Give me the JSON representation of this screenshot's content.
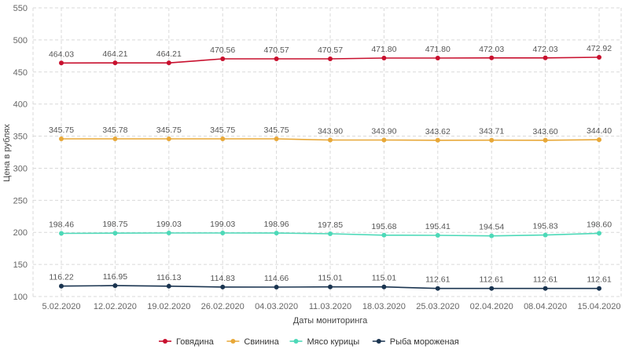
{
  "chart_data": {
    "type": "line",
    "xlabel": "Даты мониторинга",
    "ylabel": "Цена в рублях",
    "ylim": [
      100,
      550
    ],
    "yticks": [
      "100",
      "150",
      "200",
      "250",
      "300",
      "350",
      "400",
      "450",
      "500",
      "550"
    ],
    "grid": true,
    "legend_position": "bottom-center",
    "categories": [
      "5.02.2020",
      "12.02.2020",
      "19.02.2020",
      "26.02.2020",
      "04.03.2020",
      "11.03.2020",
      "18.03.2020",
      "25.03.2020",
      "02.04.2020",
      "08.04.2020",
      "15.04.2020"
    ],
    "series": [
      {
        "name": "Говядина",
        "color": "#c8102e",
        "values": [
          464.03,
          464.21,
          464.21,
          470.56,
          470.57,
          470.57,
          471.8,
          471.8,
          472.03,
          472.03,
          472.92
        ],
        "labels": [
          "464.03",
          "464.21",
          "464.21",
          "470.56",
          "470.57",
          "470.57",
          "471.80",
          "471.80",
          "472.03",
          "472.03",
          "472.92"
        ]
      },
      {
        "name": "Свинина",
        "color": "#e8a838",
        "values": [
          345.75,
          345.78,
          345.75,
          345.75,
          345.75,
          343.9,
          343.9,
          343.62,
          343.71,
          343.6,
          344.4
        ],
        "labels": [
          "345.75",
          "345.78",
          "345.75",
          "345.75",
          "345.75",
          "343.90",
          "343.90",
          "343.62",
          "343.71",
          "343.60",
          "344.40"
        ]
      },
      {
        "name": "Мясо курицы",
        "color": "#4dd9b8",
        "values": [
          198.46,
          198.75,
          199.03,
          199.03,
          198.96,
          197.85,
          195.68,
          195.41,
          194.54,
          195.83,
          198.6
        ],
        "labels": [
          "198.46",
          "198.75",
          "199.03",
          "199.03",
          "198.96",
          "197.85",
          "195.68",
          "195.41",
          "194.54",
          "195.83",
          "198.60"
        ]
      },
      {
        "name": "Рыба мороженая",
        "color": "#1a3450",
        "values": [
          116.22,
          116.95,
          116.13,
          114.83,
          114.66,
          115.01,
          115.01,
          112.61,
          112.61,
          112.61,
          112.61
        ],
        "labels": [
          "116.22",
          "116.95",
          "116.13",
          "114.83",
          "114.66",
          "115.01",
          "115.01",
          "112.61",
          "112.61",
          "112.61",
          "112.61"
        ]
      }
    ]
  }
}
